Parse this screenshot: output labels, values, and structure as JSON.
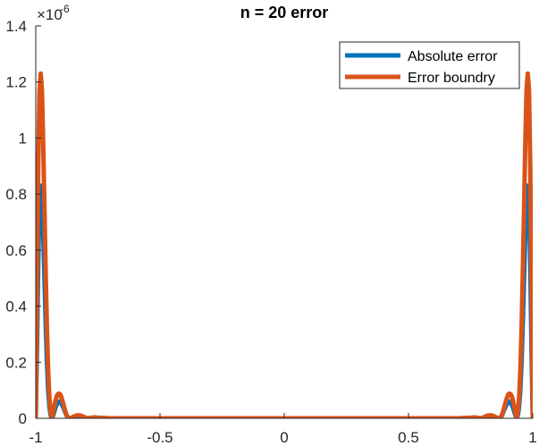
{
  "chart_data": {
    "type": "line",
    "title": "n = 20 error",
    "xlabel": "",
    "ylabel": "",
    "xlim": [
      -1,
      1
    ],
    "ylim": [
      0,
      1.4
    ],
    "y_exponent_label": "×10",
    "y_exponent_power": "-6",
    "xticks": [
      -1,
      -0.5,
      0,
      0.5,
      1
    ],
    "xtick_labels": [
      "-1",
      "-0.5",
      "0",
      "0.5",
      "1"
    ],
    "yticks": [
      0,
      0.2,
      0.4,
      0.6,
      0.8,
      1,
      1.2,
      1.4
    ],
    "ytick_labels": [
      "0",
      "0.2",
      "0.4",
      "0.6",
      "0.8",
      "1",
      "1.2",
      "1.4"
    ],
    "legend_position": "top-right",
    "grid": false,
    "series": [
      {
        "name": "Absolute error",
        "color": "#0072BD",
        "x": [
          -1.0,
          -0.995,
          -0.99,
          -0.985,
          -0.98,
          -0.975,
          -0.97,
          -0.965,
          -0.96,
          -0.955,
          -0.95,
          -0.945,
          -0.94,
          -0.935,
          -0.93,
          -0.925,
          -0.92,
          -0.915,
          -0.91,
          -0.905,
          -0.9,
          -0.895,
          -0.89,
          -0.885,
          -0.88,
          -0.875,
          -0.87,
          -0.86,
          -0.85,
          -0.84,
          -0.83,
          -0.82,
          -0.81,
          -0.8,
          -0.79,
          -0.78,
          -0.77,
          -0.76,
          -0.75,
          -0.7,
          -0.6,
          0.6,
          0.7,
          0.75,
          0.76,
          0.77,
          0.78,
          0.79,
          0.8,
          0.81,
          0.82,
          0.83,
          0.84,
          0.85,
          0.86,
          0.87,
          0.875,
          0.88,
          0.885,
          0.89,
          0.895,
          0.9,
          0.905,
          0.91,
          0.915,
          0.92,
          0.925,
          0.93,
          0.935,
          0.94,
          0.945,
          0.95,
          0.955,
          0.96,
          0.965,
          0.97,
          0.975,
          0.98,
          0.985,
          0.99,
          0.995,
          1.0
        ],
        "y": [
          0.0,
          0.25,
          0.55,
          0.78,
          0.83,
          0.78,
          0.66,
          0.5,
          0.34,
          0.2,
          0.1,
          0.04,
          0.01,
          0.0,
          0.01,
          0.025,
          0.04,
          0.05,
          0.055,
          0.06,
          0.058,
          0.05,
          0.04,
          0.03,
          0.018,
          0.008,
          0.002,
          0.0,
          0.003,
          0.006,
          0.007,
          0.006,
          0.004,
          0.001,
          0.0,
          0.001,
          0.002,
          0.002,
          0.001,
          0.0,
          0.0,
          0.0,
          0.0,
          0.001,
          0.002,
          0.002,
          0.001,
          0.0,
          0.001,
          0.004,
          0.006,
          0.007,
          0.006,
          0.003,
          0.0,
          0.002,
          0.008,
          0.018,
          0.03,
          0.04,
          0.05,
          0.058,
          0.06,
          0.055,
          0.05,
          0.04,
          0.025,
          0.01,
          0.0,
          0.01,
          0.04,
          0.1,
          0.2,
          0.34,
          0.5,
          0.66,
          0.78,
          0.83,
          0.78,
          0.55,
          0.25,
          0.0
        ]
      },
      {
        "name": "Error boundry",
        "color": "#D95319",
        "x": [
          -1.0,
          -0.995,
          -0.99,
          -0.985,
          -0.98,
          -0.975,
          -0.97,
          -0.965,
          -0.96,
          -0.955,
          -0.95,
          -0.945,
          -0.94,
          -0.935,
          -0.93,
          -0.925,
          -0.92,
          -0.915,
          -0.91,
          -0.905,
          -0.9,
          -0.895,
          -0.89,
          -0.885,
          -0.88,
          -0.875,
          -0.87,
          -0.86,
          -0.85,
          -0.84,
          -0.83,
          -0.82,
          -0.81,
          -0.8,
          -0.79,
          -0.78,
          -0.77,
          -0.76,
          -0.75,
          -0.7,
          -0.6,
          0.6,
          0.7,
          0.75,
          0.76,
          0.77,
          0.78,
          0.79,
          0.8,
          0.81,
          0.82,
          0.83,
          0.84,
          0.85,
          0.86,
          0.87,
          0.875,
          0.88,
          0.885,
          0.89,
          0.895,
          0.9,
          0.905,
          0.91,
          0.915,
          0.92,
          0.925,
          0.93,
          0.935,
          0.94,
          0.945,
          0.95,
          0.955,
          0.96,
          0.965,
          0.97,
          0.975,
          0.98,
          0.985,
          0.99,
          0.995,
          1.0
        ],
        "y": [
          0.0,
          0.45,
          0.9,
          1.17,
          1.23,
          1.17,
          0.98,
          0.75,
          0.52,
          0.32,
          0.17,
          0.07,
          0.02,
          0.0,
          0.02,
          0.045,
          0.065,
          0.08,
          0.087,
          0.088,
          0.083,
          0.07,
          0.055,
          0.038,
          0.022,
          0.01,
          0.003,
          0.0,
          0.005,
          0.009,
          0.011,
          0.01,
          0.007,
          0.002,
          0.0,
          0.001,
          0.003,
          0.003,
          0.002,
          0.0,
          0.0,
          0.0,
          0.0,
          0.002,
          0.003,
          0.003,
          0.001,
          0.0,
          0.002,
          0.007,
          0.01,
          0.011,
          0.009,
          0.005,
          0.0,
          0.003,
          0.01,
          0.022,
          0.038,
          0.055,
          0.07,
          0.083,
          0.088,
          0.087,
          0.08,
          0.065,
          0.045,
          0.02,
          0.0,
          0.02,
          0.07,
          0.17,
          0.32,
          0.52,
          0.75,
          0.98,
          1.17,
          1.23,
          1.17,
          0.9,
          0.45,
          0.0
        ]
      }
    ]
  }
}
